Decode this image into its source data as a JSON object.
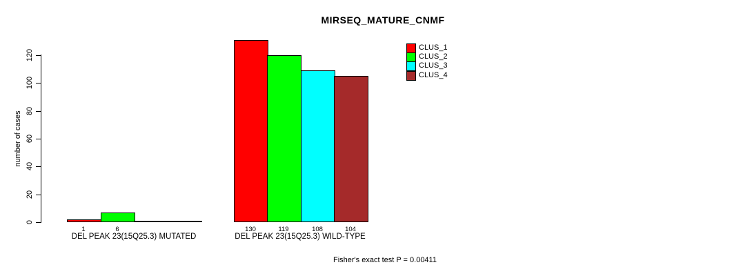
{
  "title": "MIRSEQ_MATURE_CNMF",
  "footer": "Fisher's exact test P = 0.00411",
  "chart_data": {
    "type": "bar",
    "title": "MIRSEQ_MATURE_CNMF",
    "xlabel": "",
    "ylabel": "number of cases",
    "ylim": [
      0,
      130
    ],
    "yticks": [
      0,
      20,
      40,
      60,
      80,
      100,
      120
    ],
    "grid": false,
    "legend_position": "top-right",
    "series": [
      {
        "name": "CLUS_1",
        "color": "#ff0000"
      },
      {
        "name": "CLUS_2",
        "color": "#00ff00"
      },
      {
        "name": "CLUS_3",
        "color": "#00ffff"
      },
      {
        "name": "CLUS_4",
        "color": "#a52a2a"
      }
    ],
    "groups": [
      {
        "label": "DEL PEAK 23(15Q25.3) MUTATED",
        "values": [
          1,
          6,
          0,
          0
        ],
        "bar_labels": [
          "1",
          "6",
          "",
          ""
        ]
      },
      {
        "label": "DEL PEAK 23(15Q25.3) WILD-TYPE",
        "values": [
          130,
          119,
          108,
          104
        ],
        "bar_labels": [
          "130",
          "119",
          "108",
          "104"
        ]
      }
    ],
    "annotation": "Fisher's exact test P = 0.00411"
  }
}
